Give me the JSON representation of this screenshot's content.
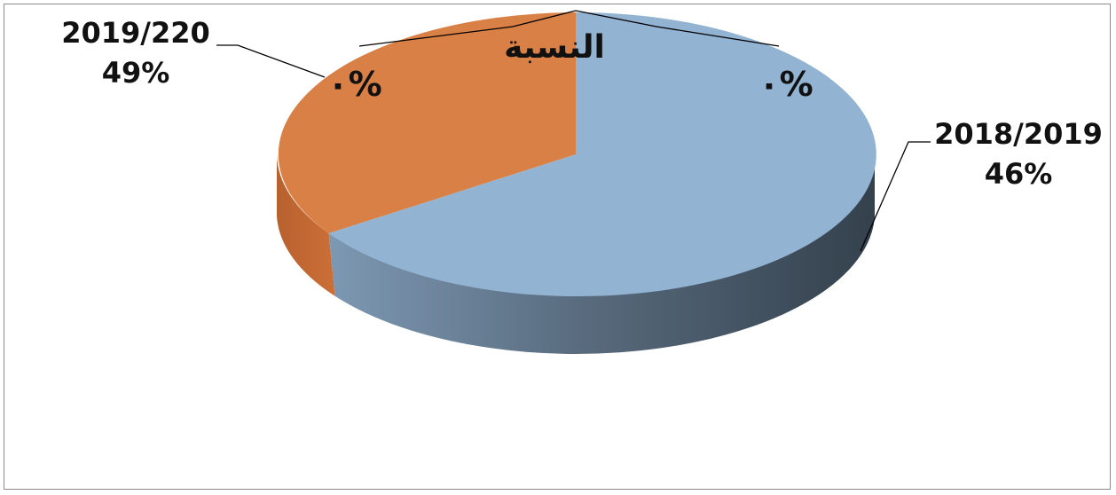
{
  "chart_data": {
    "type": "pie",
    "style": "3d",
    "title": "النسبة",
    "legend": "none",
    "slices": [
      {
        "category": "2018/2019",
        "percent_label": "46%",
        "value": 46,
        "color": "#93b3d2",
        "inner_label": "٠%"
      },
      {
        "category": "2019/220",
        "percent_label": "49%",
        "value": 49,
        "color": "#d98046",
        "inner_label": "٠%"
      }
    ]
  }
}
